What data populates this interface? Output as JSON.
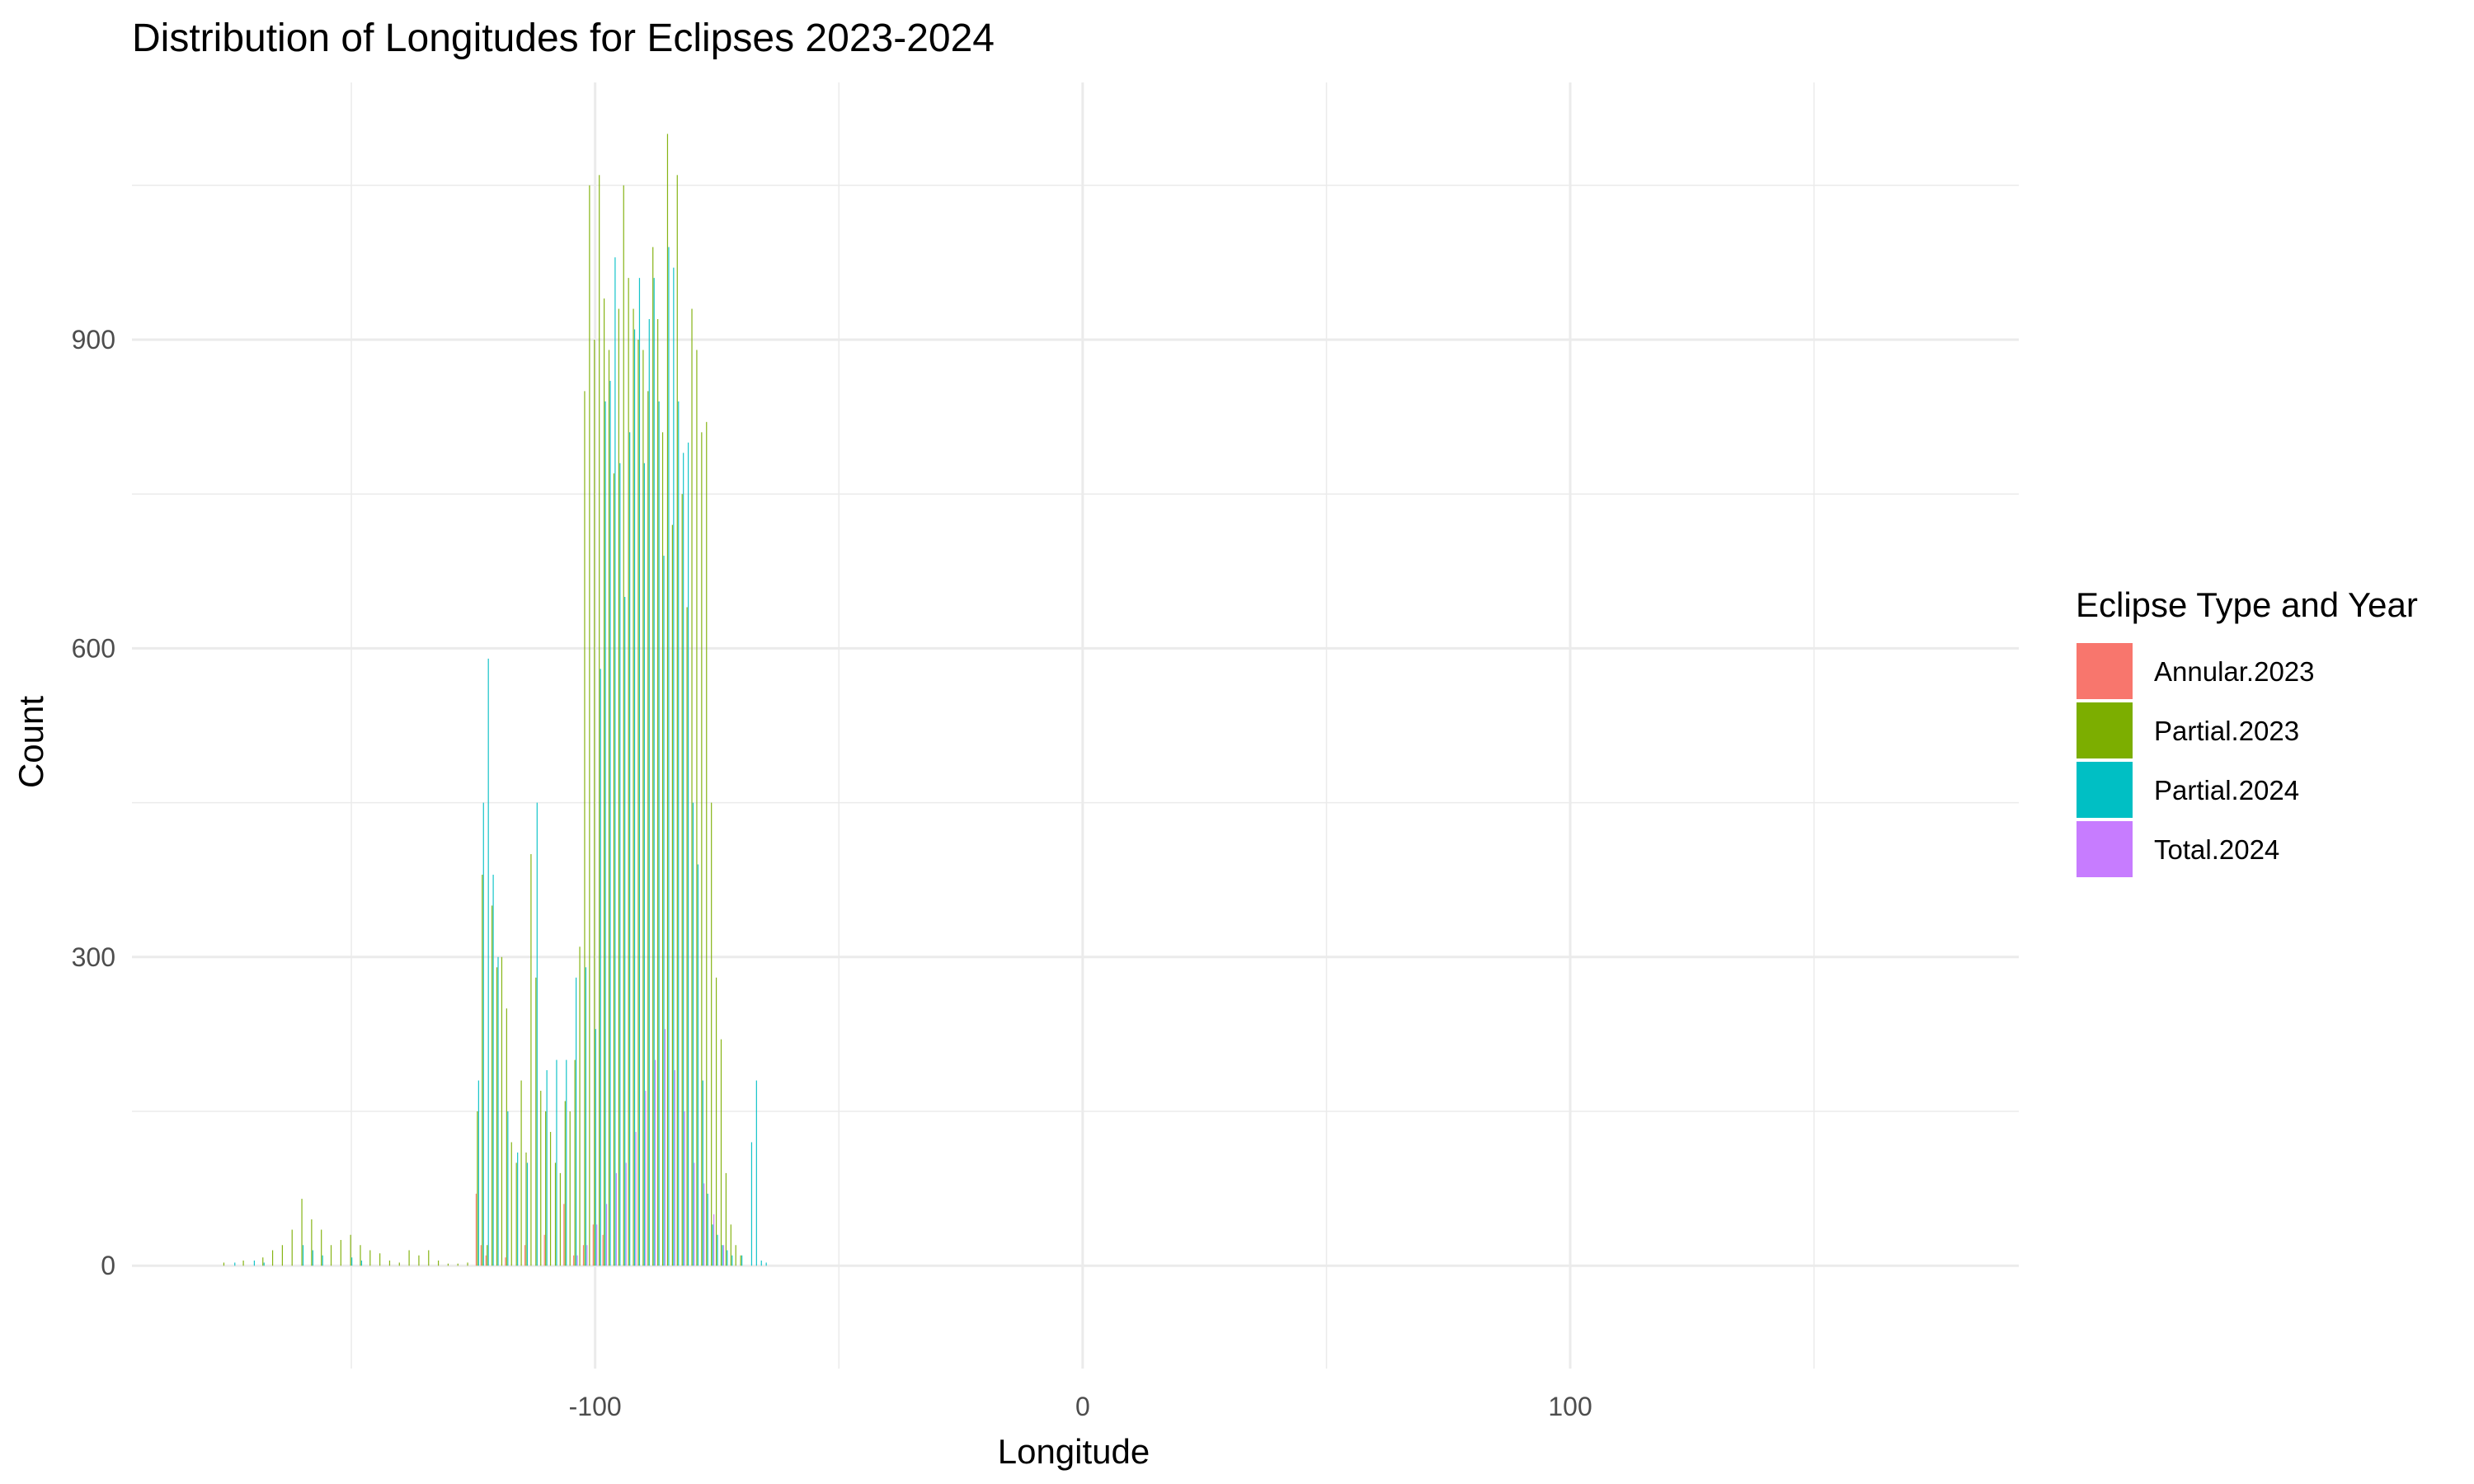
{
  "chart_data": {
    "type": "bar",
    "title": "Distribution of Longitudes for Eclipses 2023-2024",
    "xlabel": "Longitude",
    "ylabel": "Count",
    "xlim": [
      -195,
      192
    ],
    "ylim": [
      -100,
      1150
    ],
    "x_ticks": [
      -100,
      0,
      100
    ],
    "x_tick_labels": [
      "-100",
      "0",
      "100"
    ],
    "y_ticks": [
      0,
      300,
      600,
      900
    ],
    "y_tick_labels": [
      "0",
      "300",
      "600",
      "900"
    ],
    "grid": true,
    "legend_title": "Eclipse Type and Year",
    "legend_position": "right",
    "series": [
      {
        "name": "Annular.2023",
        "color": "#F8766D",
        "x": [
          -124,
          -123,
          -122,
          -118,
          -114,
          -110,
          -106,
          -104,
          -102,
          -100,
          -98
        ],
        "values": [
          70,
          20,
          10,
          8,
          20,
          30,
          60,
          10,
          20,
          40,
          30
        ]
      },
      {
        "name": "Partial.2023",
        "color": "#7CAE00",
        "x": [
          -176,
          -172,
          -168,
          -166,
          -164,
          -162,
          -160,
          -158,
          -156,
          -154,
          -152,
          -150,
          -148,
          -146,
          -144,
          -142,
          -140,
          -138,
          -136,
          -134,
          -132,
          -130,
          -128,
          -126,
          -124,
          -123,
          -122,
          -121,
          -120,
          -119,
          -118,
          -117,
          -116,
          -115,
          -114,
          -113,
          -112,
          -111,
          -110,
          -109,
          -108,
          -107,
          -106,
          -105,
          -104,
          -103,
          -102,
          -101,
          -100,
          -99,
          -98,
          -97,
          -96,
          -95,
          -94,
          -93,
          -92,
          -91,
          -90,
          -89,
          -88,
          -87,
          -86,
          -85,
          -84,
          -83,
          -82,
          -81,
          -80,
          -79,
          -78,
          -77,
          -76,
          -75,
          -74,
          -73,
          -72,
          -71,
          -70
        ],
        "values": [
          3,
          5,
          8,
          15,
          20,
          35,
          65,
          45,
          35,
          20,
          25,
          30,
          20,
          15,
          12,
          5,
          3,
          15,
          10,
          15,
          5,
          2,
          2,
          3,
          150,
          380,
          20,
          350,
          290,
          300,
          250,
          120,
          100,
          180,
          110,
          400,
          280,
          170,
          150,
          130,
          100,
          90,
          160,
          150,
          200,
          310,
          850,
          1050,
          900,
          1060,
          940,
          890,
          770,
          930,
          1050,
          960,
          930,
          900,
          890,
          850,
          990,
          920,
          810,
          1100,
          720,
          1060,
          750,
          640,
          930,
          890,
          810,
          820,
          450,
          280,
          220,
          90,
          40,
          20,
          10
        ]
      },
      {
        "name": "Partial.2024",
        "color": "#00BFC4",
        "x": [
          -174,
          -170,
          -168,
          -160,
          -158,
          -156,
          -150,
          -148,
          -124,
          -123,
          -122,
          -121,
          -120,
          -118,
          -116,
          -114,
          -112,
          -110,
          -108,
          -106,
          -104,
          -102,
          -100,
          -99,
          -98,
          -97,
          -96,
          -95,
          -94,
          -93,
          -92,
          -91,
          -90,
          -89,
          -88,
          -87,
          -86,
          -85,
          -84,
          -83,
          -82,
          -81,
          -80,
          -79,
          -78,
          -77,
          -76,
          -75,
          -74,
          -73,
          -72,
          -70,
          -68,
          -67,
          -66,
          -65
        ],
        "values": [
          3,
          5,
          3,
          20,
          15,
          10,
          8,
          5,
          180,
          450,
          590,
          380,
          300,
          150,
          110,
          100,
          450,
          190,
          200,
          200,
          280,
          290,
          230,
          580,
          840,
          860,
          980,
          780,
          650,
          810,
          910,
          960,
          780,
          920,
          960,
          840,
          690,
          990,
          970,
          840,
          790,
          800,
          450,
          390,
          180,
          70,
          40,
          30,
          20,
          15,
          10,
          10,
          120,
          180,
          5,
          3
        ]
      },
      {
        "name": "Total.2024",
        "color": "#C77CFF",
        "x": [
          -104,
          -102,
          -100,
          -98,
          -96,
          -94,
          -92,
          -90,
          -88,
          -86,
          -84,
          -82,
          -80,
          -78,
          -76,
          -74
        ],
        "values": [
          10,
          20,
          40,
          60,
          90,
          100,
          130,
          170,
          200,
          230,
          190,
          150,
          100,
          80,
          50,
          20
        ]
      }
    ]
  }
}
